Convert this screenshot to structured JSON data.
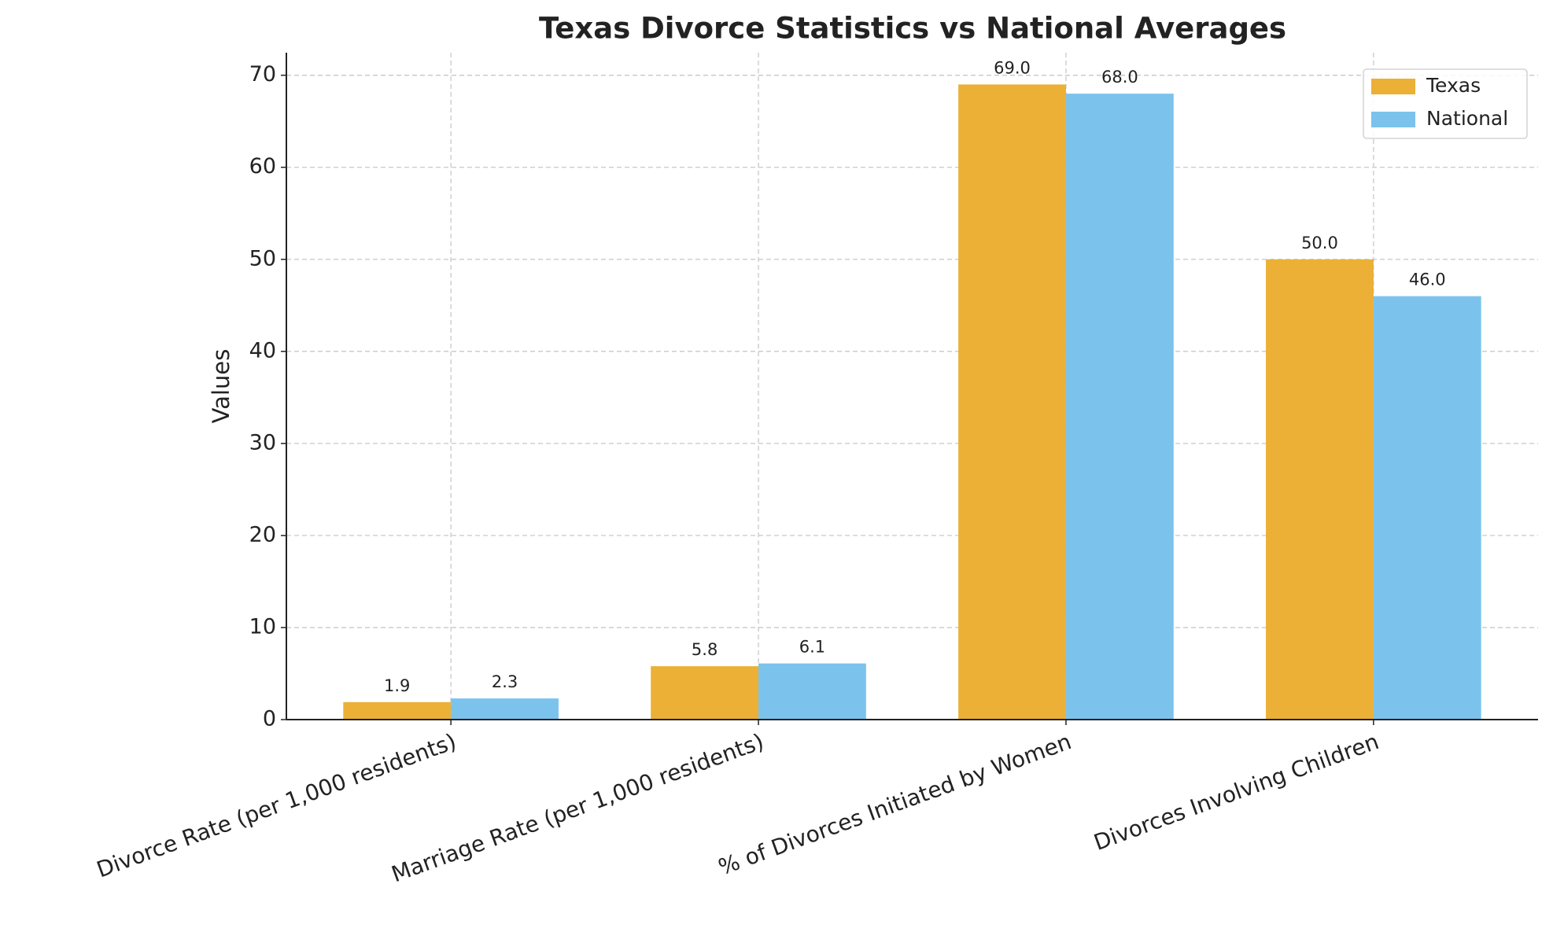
{
  "chart_data": {
    "type": "bar",
    "title": "Texas Divorce Statistics vs National Averages",
    "y_label": "Values",
    "categories": [
      "Divorce Rate (per 1,000 residents)",
      "Marriage Rate (per 1,000 residents)",
      "% of Divorces Initiated by Women",
      "Divorces Involving Children"
    ],
    "series": [
      {
        "name": "Texas",
        "color": "#ebb035",
        "values": [
          1.9,
          5.8,
          69.0,
          50.0
        ],
        "value_labels": [
          "1.9",
          "5.8",
          "69.0",
          "50.0"
        ]
      },
      {
        "name": "National",
        "color": "#7bc3ec",
        "values": [
          2.3,
          6.1,
          68.0,
          46.0
        ],
        "value_labels": [
          "2.3",
          "6.1",
          "68.0",
          "46.0"
        ]
      }
    ],
    "ylim": [
      0,
      72.45
    ],
    "yticks": [
      0,
      10,
      20,
      30,
      40,
      50,
      60,
      70
    ],
    "grid": true,
    "legend": "upper right"
  }
}
